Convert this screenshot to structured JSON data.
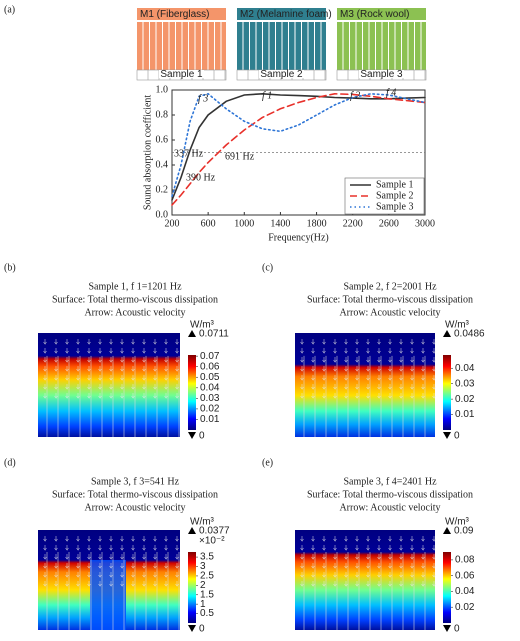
{
  "panel_a": {
    "label": "(a)",
    "materials": [
      {
        "name": "M1 (Fiberglass)",
        "color": "#f4956a",
        "sample": "Sample 1"
      },
      {
        "name": "M2 (Melamine foam)",
        "color": "#2f7f8f",
        "sample": "Sample 2"
      },
      {
        "name": "M3 (Rock wool)",
        "color": "#8cc152",
        "sample": "Sample 3"
      }
    ]
  },
  "chart_data": {
    "type": "line",
    "x_label": "Frequency(Hz)",
    "y_label": "Sound absorption coefficient",
    "x": [
      200,
      300,
      400,
      500,
      600,
      800,
      1000,
      1200,
      1400,
      1600,
      1800,
      2000,
      2200,
      2400,
      2600,
      2800,
      3000
    ],
    "series": [
      {
        "name": "Sample 1",
        "color": "#333333",
        "dash": "solid",
        "values": [
          0.12,
          0.3,
          0.52,
          0.7,
          0.8,
          0.91,
          0.96,
          0.97,
          0.96,
          0.955,
          0.95,
          0.94,
          0.935,
          0.93,
          0.93,
          0.935,
          0.94
        ]
      },
      {
        "name": "Sample 2",
        "color": "#e8302a",
        "dash": "dashed",
        "values": [
          0.08,
          0.16,
          0.25,
          0.34,
          0.42,
          0.56,
          0.68,
          0.78,
          0.85,
          0.9,
          0.94,
          0.97,
          0.965,
          0.95,
          0.93,
          0.915,
          0.9
        ]
      },
      {
        "name": "Sample 3",
        "color": "#2e75d6",
        "dash": "dotted",
        "values": [
          0.15,
          0.4,
          0.75,
          0.95,
          0.97,
          0.85,
          0.75,
          0.69,
          0.67,
          0.72,
          0.8,
          0.88,
          0.94,
          0.97,
          0.96,
          0.93,
          0.9
        ]
      }
    ],
    "xlim": [
      200,
      3000
    ],
    "xticks": [
      200,
      600,
      1000,
      1400,
      1800,
      2200,
      2600,
      3000
    ],
    "ylim": [
      0,
      1
    ],
    "yticks": [
      {
        "value": 0,
        "label": "0.0"
      },
      0.2,
      0.4,
      0.6,
      0.8,
      {
        "value": 1,
        "label": "1.0"
      }
    ],
    "reference_y": 0.5,
    "legend": "lower right",
    "annotations": [
      {
        "text": "337 Hz",
        "color": "#2e75d6"
      },
      {
        "text": "390 Hz",
        "color": "#333333"
      },
      {
        "text": "691 Hz",
        "color": "#e8302a"
      },
      {
        "text": "f 3",
        "color": "#2e75d6"
      },
      {
        "text": "f 1",
        "color": "#333333"
      },
      {
        "text": "f 2",
        "color": "#e8302a"
      },
      {
        "text": "f 4",
        "color": "#2e75d6"
      }
    ]
  },
  "panels": [
    {
      "label": "(b)",
      "title_lines": [
        "Sample 1, f 1=1201 Hz",
        "Surface: Total thermo-viscous dissipation",
        "Arrow: Acoustic velocity"
      ],
      "title_color": "#555555",
      "unit": "W/m³",
      "max": 0.0711,
      "min": 0,
      "ticks": [
        0.01,
        0.02,
        0.03,
        0.04,
        0.05,
        0.06,
        0.07
      ]
    },
    {
      "label": "(c)",
      "title_lines": [
        "Sample 2, f 2=2001 Hz",
        "Surface: Total thermo-viscous dissipation",
        "Arrow: Acoustic velocity"
      ],
      "title_color": "#e8302a",
      "unit": "W/m³",
      "max": 0.0486,
      "min": 0,
      "ticks": [
        0.01,
        0.02,
        0.03,
        0.04
      ]
    },
    {
      "label": "(d)",
      "title_lines": [
        "Sample 3, f 3=541 Hz",
        "Surface: Total thermo-viscous dissipation",
        "Arrow: Acoustic velocity"
      ],
      "title_color": "#2e75d6",
      "unit": "W/m³",
      "max": 0.0377,
      "min": 0,
      "multiplier": "×10⁻²",
      "ticks": [
        {
          "value": 0.005,
          "label": "0.5"
        },
        {
          "value": 0.01,
          "label": "1"
        },
        {
          "value": 0.015,
          "label": "1.5"
        },
        {
          "value": 0.02,
          "label": "2"
        },
        {
          "value": 0.025,
          "label": "2.5"
        },
        {
          "value": 0.03,
          "label": "3"
        },
        {
          "value": 0.035,
          "label": "3.5"
        }
      ]
    },
    {
      "label": "(e)",
      "title_lines": [
        "Sample 3, f 4=2401 Hz",
        "Surface: Total thermo-viscous dissipation",
        "Arrow: Acoustic velocity"
      ],
      "title_color": "#2e75d6",
      "unit": "W/m³",
      "max": 0.09,
      "min": 0,
      "ticks": [
        0.02,
        0.04,
        0.06,
        0.08
      ]
    }
  ]
}
